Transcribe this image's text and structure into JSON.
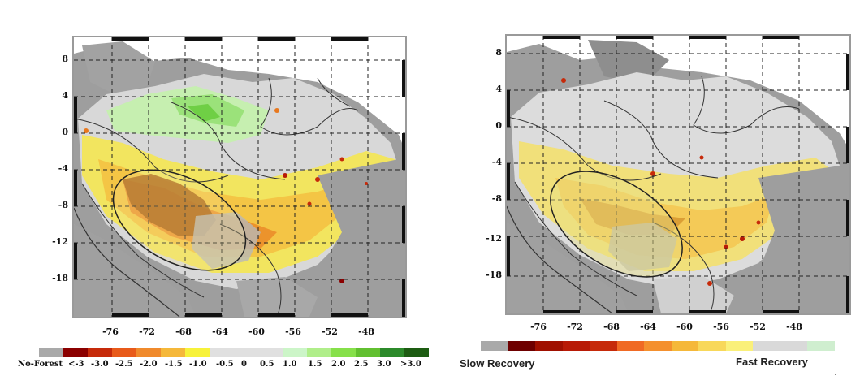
{
  "left_map": {
    "y_ticks": [
      "8",
      "4",
      "0",
      "-4",
      "-8",
      "-12",
      "-18"
    ],
    "x_ticks": [
      "-76",
      "-72",
      "-68",
      "-64",
      "-60",
      "-56",
      "-52",
      "-48"
    ],
    "legend": {
      "labels": [
        "No-Forest",
        "<-3",
        "-3.0",
        "-2.5",
        "-2.0",
        "-1.5",
        "-1.0",
        "-0.5",
        "0",
        "0.5",
        "1.0",
        "1.5",
        "2.0",
        "2.5",
        "3.0",
        ">3.0"
      ],
      "colors": [
        "#a9a9a9",
        "#8b0000",
        "#c62a0a",
        "#e85a1a",
        "#f08a2c",
        "#f5b83a",
        "#f7f23a",
        "#e0e0e0",
        "#e0e0e0",
        "#e0e0e0",
        "#ccf5c8",
        "#b0ee8a",
        "#86e04a",
        "#62c030",
        "#2c8a2a",
        "#1d5c12"
      ]
    }
  },
  "right_map": {
    "y_ticks": [
      "8",
      "4",
      "0",
      "-4",
      "-8",
      "-12",
      "-18"
    ],
    "x_ticks": [
      "-76",
      "-72",
      "-68",
      "-64",
      "-60",
      "-56",
      "-52",
      "-48"
    ],
    "legend": {
      "left_label": "Slow Recovery",
      "right_label": "Fast Recovery",
      "colors": [
        "#a9a9a9",
        "#6e0000",
        "#a01000",
        "#b81a06",
        "#c62a0a",
        "#f06a24",
        "#f4902e",
        "#f5b83a",
        "#f8d85a",
        "#faf07a",
        "#d9d9d9",
        "#d9d9d9",
        "#cfeecf"
      ]
    }
  }
}
